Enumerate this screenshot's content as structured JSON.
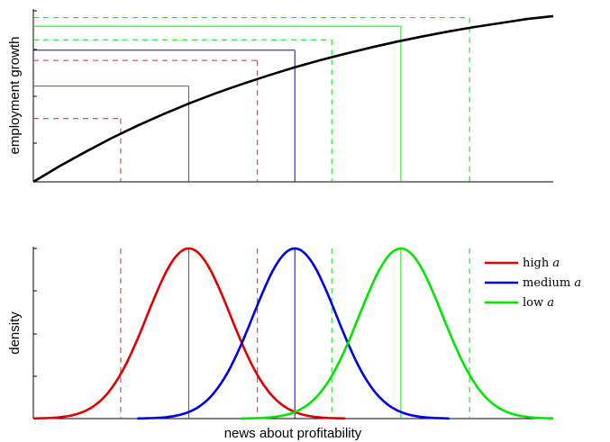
{
  "chart_data": [
    {
      "type": "line",
      "title": "",
      "xlabel": "",
      "ylabel": "employment growth",
      "xlim": [
        0,
        10
      ],
      "ylim": [
        0,
        1
      ],
      "grid": false,
      "curve": {
        "x": [
          0,
          0.5,
          1,
          1.5,
          2,
          2.5,
          3,
          3.5,
          4,
          4.5,
          5,
          5.5,
          6,
          6.5,
          7,
          7.5,
          8,
          8.5,
          9,
          9.5,
          10
        ],
        "y": [
          0.0,
          0.091,
          0.175,
          0.255,
          0.328,
          0.396,
          0.459,
          0.517,
          0.57,
          0.62,
          0.667,
          0.71,
          0.749,
          0.786,
          0.82,
          0.851,
          0.88,
          0.906,
          0.929,
          0.952,
          0.969
        ]
      },
      "reference_lines": [
        {
          "color": "#d62728",
          "style": "dashed",
          "x": 1.68,
          "y": 0.37
        },
        {
          "color": "#d62728",
          "style": "solid",
          "x": 2.99,
          "y": 0.56
        },
        {
          "color": "#d62728",
          "style": "dashed",
          "x": 4.31,
          "y": 0.71
        },
        {
          "color": "#0000ff",
          "style": "solid",
          "x": 5.03,
          "y": 0.77
        },
        {
          "color": "#00e600",
          "style": "dashed",
          "x": 5.74,
          "y": 0.83
        },
        {
          "color": "#00e600",
          "style": "solid",
          "x": 7.07,
          "y": 0.91
        },
        {
          "color": "#00e600",
          "style": "dashed",
          "x": 8.39,
          "y": 0.96
        }
      ]
    },
    {
      "type": "line",
      "title": "",
      "xlabel": "news about profitability",
      "ylabel": "density",
      "xlim": [
        0,
        10
      ],
      "ylim": [
        0,
        1
      ],
      "grid": false,
      "legend": {
        "placement": "top-right"
      },
      "series": [
        {
          "name": "high",
          "param": "a",
          "color": "#e00000",
          "mean": 2.99,
          "sd": 0.8,
          "x_range": [
            0.0,
            6.0
          ]
        },
        {
          "name": "medium",
          "param": "a",
          "color": "#0000e0",
          "mean": 5.03,
          "sd": 0.8,
          "x_range": [
            2.0,
            8.0
          ]
        },
        {
          "name": "low",
          "param": "a",
          "color": "#00e600",
          "mean": 7.07,
          "sd": 0.8,
          "x_range": [
            4.0,
            10.0
          ]
        }
      ],
      "vertical_lines": [
        {
          "color": "#d62728",
          "style": "dashed",
          "x": 1.68
        },
        {
          "color": "#d62728",
          "style": "solid",
          "x": 2.99
        },
        {
          "color": "#d62728",
          "style": "dashed",
          "x": 4.31
        },
        {
          "color": "#0000ff",
          "style": "solid",
          "x": 5.03
        },
        {
          "color": "#00e600",
          "style": "dashed",
          "x": 5.74
        },
        {
          "color": "#00e600",
          "style": "solid",
          "x": 7.07
        },
        {
          "color": "#00e600",
          "style": "dashed",
          "x": 8.39
        }
      ]
    }
  ]
}
